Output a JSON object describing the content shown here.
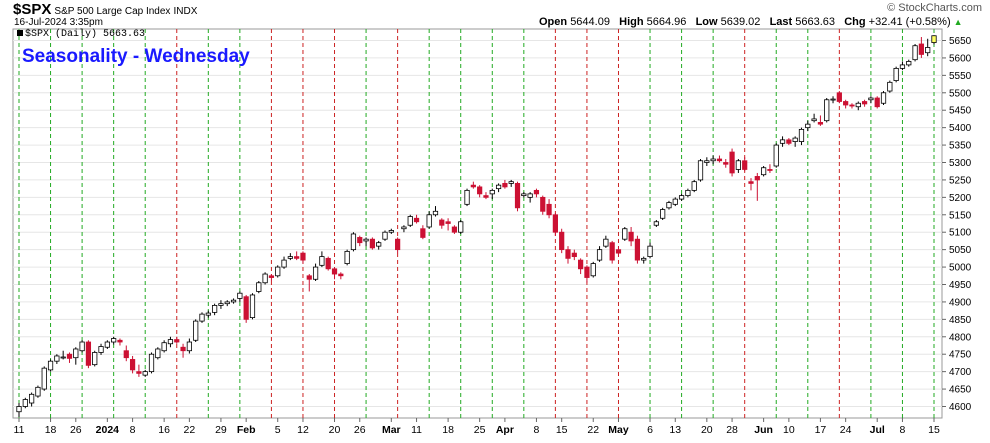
{
  "header": {
    "symbol": "$SPX",
    "name": "S&P 500 Large Cap Index",
    "exchange": "INDX",
    "timestamp": "16-Jul-2024 3:35pm",
    "legend_text": "$SPX (Daily) 5663.63",
    "open_label": "Open",
    "open_value": "5644.09",
    "high_label": "High",
    "high_value": "5664.96",
    "low_label": "Low",
    "low_value": "5639.02",
    "last_label": "Last",
    "last_value": "5663.63",
    "chg_label": "Chg",
    "chg_value": "+32.41 (+0.58%)",
    "brand": "© StockCharts.com"
  },
  "chart_data": {
    "type": "candlestick",
    "title": "Seasonality - Wednesday",
    "ylim": [
      4560,
      5700
    ],
    "y_ticks": [
      4600,
      4650,
      4700,
      4750,
      4800,
      4850,
      4900,
      4950,
      5000,
      5050,
      5100,
      5150,
      5200,
      5250,
      5300,
      5350,
      5400,
      5450,
      5500,
      5550,
      5600,
      5650
    ],
    "x_tick_labels": [
      "11",
      "18",
      "26",
      "2024",
      "8",
      "16",
      "22",
      "29",
      "Feb",
      "5",
      "12",
      "20",
      "26",
      "Mar",
      "11",
      "18",
      "25",
      "Apr",
      "8",
      "15",
      "22",
      "May",
      "6",
      "13",
      "20",
      "28",
      "Jun",
      "10",
      "17",
      "24",
      "Jul",
      "8",
      "15"
    ],
    "bold_tick_labels": [
      "2024",
      "Feb",
      "Mar",
      "Apr",
      "May",
      "Jun",
      "Jul"
    ],
    "grid": true,
    "vertical_line_colors": {
      "red": "#cc2222",
      "green": "#22aa22"
    },
    "candle_colors": {
      "up": "#ffffff",
      "down": "#cc1133",
      "outline": "#000000",
      "last": "#ffff66"
    },
    "candles": [
      {
        "o": 4585,
        "h": 4610,
        "l": 4570,
        "c": 4600
      },
      {
        "o": 4600,
        "h": 4625,
        "l": 4595,
        "c": 4620
      },
      {
        "o": 4610,
        "h": 4640,
        "l": 4600,
        "c": 4635
      },
      {
        "o": 4630,
        "h": 4660,
        "l": 4625,
        "c": 4655
      },
      {
        "o": 4650,
        "h": 4715,
        "l": 4645,
        "c": 4710
      },
      {
        "o": 4705,
        "h": 4735,
        "l": 4700,
        "c": 4730
      },
      {
        "o": 4730,
        "h": 4750,
        "l": 4722,
        "c": 4745
      },
      {
        "o": 4740,
        "h": 4760,
        "l": 4735,
        "c": 4742
      },
      {
        "o": 4750,
        "h": 4755,
        "l": 4725,
        "c": 4738
      },
      {
        "o": 4740,
        "h": 4770,
        "l": 4720,
        "c": 4765
      },
      {
        "o": 4760,
        "h": 4790,
        "l": 4755,
        "c": 4785
      },
      {
        "o": 4785,
        "h": 4790,
        "l": 4710,
        "c": 4718
      },
      {
        "o": 4720,
        "h": 4760,
        "l": 4715,
        "c": 4755
      },
      {
        "o": 4755,
        "h": 4780,
        "l": 4748,
        "c": 4772
      },
      {
        "o": 4770,
        "h": 4790,
        "l": 4765,
        "c": 4785
      },
      {
        "o": 4785,
        "h": 4800,
        "l": 4778,
        "c": 4795
      },
      {
        "o": 4790,
        "h": 4795,
        "l": 4775,
        "c": 4785
      },
      {
        "o": 4760,
        "h": 4775,
        "l": 4730,
        "c": 4740
      },
      {
        "o": 4735,
        "h": 4745,
        "l": 4695,
        "c": 4705
      },
      {
        "o": 4700,
        "h": 4720,
        "l": 4685,
        "c": 4695
      },
      {
        "o": 4690,
        "h": 4705,
        "l": 4685,
        "c": 4700
      },
      {
        "o": 4700,
        "h": 4755,
        "l": 4695,
        "c": 4750
      },
      {
        "o": 4740,
        "h": 4770,
        "l": 4735,
        "c": 4765
      },
      {
        "o": 4760,
        "h": 4790,
        "l": 4755,
        "c": 4783
      },
      {
        "o": 4780,
        "h": 4800,
        "l": 4770,
        "c": 4792
      },
      {
        "o": 4792,
        "h": 4800,
        "l": 4780,
        "c": 4785
      },
      {
        "o": 4770,
        "h": 4780,
        "l": 4740,
        "c": 4760
      },
      {
        "o": 4760,
        "h": 4795,
        "l": 4752,
        "c": 4785
      },
      {
        "o": 4790,
        "h": 4850,
        "l": 4785,
        "c": 4845
      },
      {
        "o": 4845,
        "h": 4870,
        "l": 4840,
        "c": 4865
      },
      {
        "o": 4862,
        "h": 4875,
        "l": 4855,
        "c": 4868
      },
      {
        "o": 4870,
        "h": 4895,
        "l": 4862,
        "c": 4890
      },
      {
        "o": 4890,
        "h": 4905,
        "l": 4880,
        "c": 4895
      },
      {
        "o": 4895,
        "h": 4905,
        "l": 4888,
        "c": 4900
      },
      {
        "o": 4900,
        "h": 4910,
        "l": 4895,
        "c": 4905
      },
      {
        "o": 4910,
        "h": 4930,
        "l": 4900,
        "c": 4925
      },
      {
        "o": 4915,
        "h": 4920,
        "l": 4840,
        "c": 4850
      },
      {
        "o": 4855,
        "h": 4925,
        "l": 4850,
        "c": 4920
      },
      {
        "o": 4930,
        "h": 4960,
        "l": 4925,
        "c": 4955
      },
      {
        "o": 4955,
        "h": 4985,
        "l": 4950,
        "c": 4980
      },
      {
        "o": 4975,
        "h": 4980,
        "l": 4960,
        "c": 4970
      },
      {
        "o": 4975,
        "h": 5005,
        "l": 4970,
        "c": 5000
      },
      {
        "o": 5000,
        "h": 5030,
        "l": 4995,
        "c": 5020
      },
      {
        "o": 5025,
        "h": 5040,
        "l": 5020,
        "c": 5030
      },
      {
        "o": 5030,
        "h": 5045,
        "l": 5020,
        "c": 5025
      },
      {
        "o": 5040,
        "h": 5045,
        "l": 5010,
        "c": 5020
      },
      {
        "o": 4975,
        "h": 4980,
        "l": 4930,
        "c": 4965
      },
      {
        "o": 4965,
        "h": 5010,
        "l": 4960,
        "c": 5000
      },
      {
        "o": 5005,
        "h": 5045,
        "l": 5000,
        "c": 5030
      },
      {
        "o": 5025,
        "h": 5030,
        "l": 4990,
        "c": 4995
      },
      {
        "o": 4995,
        "h": 5000,
        "l": 4965,
        "c": 4980
      },
      {
        "o": 4980,
        "h": 4985,
        "l": 4965,
        "c": 4975
      },
      {
        "o": 5010,
        "h": 5050,
        "l": 5005,
        "c": 5045
      },
      {
        "o": 5050,
        "h": 5100,
        "l": 5045,
        "c": 5095
      },
      {
        "o": 5085,
        "h": 5090,
        "l": 5060,
        "c": 5070
      },
      {
        "o": 5075,
        "h": 5085,
        "l": 5060,
        "c": 5080
      },
      {
        "o": 5080,
        "h": 5085,
        "l": 5050,
        "c": 5055
      },
      {
        "o": 5060,
        "h": 5075,
        "l": 5050,
        "c": 5070
      },
      {
        "o": 5080,
        "h": 5105,
        "l": 5075,
        "c": 5100
      },
      {
        "o": 5100,
        "h": 5110,
        "l": 5095,
        "c": 5105
      },
      {
        "o": 5080,
        "h": 5085,
        "l": 5040,
        "c": 5050
      },
      {
        "o": 5110,
        "h": 5120,
        "l": 5100,
        "c": 5115
      },
      {
        "o": 5120,
        "h": 5150,
        "l": 5115,
        "c": 5145
      },
      {
        "o": 5140,
        "h": 5150,
        "l": 5125,
        "c": 5130
      },
      {
        "o": 5110,
        "h": 5120,
        "l": 5080,
        "c": 5085
      },
      {
        "o": 5115,
        "h": 5160,
        "l": 5110,
        "c": 5150
      },
      {
        "o": 5150,
        "h": 5175,
        "l": 5145,
        "c": 5160
      },
      {
        "o": 5135,
        "h": 5140,
        "l": 5110,
        "c": 5120
      },
      {
        "o": 5130,
        "h": 5140,
        "l": 5105,
        "c": 5125
      },
      {
        "o": 5115,
        "h": 5120,
        "l": 5095,
        "c": 5100
      },
      {
        "o": 5100,
        "h": 5135,
        "l": 5095,
        "c": 5130
      },
      {
        "o": 5180,
        "h": 5225,
        "l": 5175,
        "c": 5220
      },
      {
        "o": 5235,
        "h": 5245,
        "l": 5225,
        "c": 5230
      },
      {
        "o": 5230,
        "h": 5235,
        "l": 5200,
        "c": 5210
      },
      {
        "o": 5205,
        "h": 5215,
        "l": 5195,
        "c": 5200
      },
      {
        "o": 5210,
        "h": 5225,
        "l": 5195,
        "c": 5220
      },
      {
        "o": 5225,
        "h": 5240,
        "l": 5215,
        "c": 5235
      },
      {
        "o": 5240,
        "h": 5250,
        "l": 5225,
        "c": 5230
      },
      {
        "o": 5240,
        "h": 5250,
        "l": 5230,
        "c": 5245
      },
      {
        "o": 5240,
        "h": 5245,
        "l": 5160,
        "c": 5170
      },
      {
        "o": 5205,
        "h": 5215,
        "l": 5200,
        "c": 5210
      },
      {
        "o": 5200,
        "h": 5215,
        "l": 5185,
        "c": 5210
      },
      {
        "o": 5220,
        "h": 5225,
        "l": 5200,
        "c": 5210
      },
      {
        "o": 5200,
        "h": 5205,
        "l": 5150,
        "c": 5160
      },
      {
        "o": 5180,
        "h": 5195,
        "l": 5140,
        "c": 5150
      },
      {
        "o": 5150,
        "h": 5155,
        "l": 5090,
        "c": 5100
      },
      {
        "o": 5100,
        "h": 5110,
        "l": 5040,
        "c": 5050
      },
      {
        "o": 5050,
        "h": 5060,
        "l": 5010,
        "c": 5025
      },
      {
        "o": 5040,
        "h": 5050,
        "l": 5020,
        "c": 5030
      },
      {
        "o": 5020,
        "h": 5025,
        "l": 4980,
        "c": 4995
      },
      {
        "o": 5000,
        "h": 5005,
        "l": 4955,
        "c": 4970
      },
      {
        "o": 4975,
        "h": 5015,
        "l": 4970,
        "c": 5010
      },
      {
        "o": 5020,
        "h": 5060,
        "l": 5015,
        "c": 5050
      },
      {
        "o": 5060,
        "h": 5090,
        "l": 5055,
        "c": 5080
      },
      {
        "o": 5070,
        "h": 5075,
        "l": 5010,
        "c": 5020
      },
      {
        "o": 5050,
        "h": 5060,
        "l": 5030,
        "c": 5040
      },
      {
        "o": 5080,
        "h": 5115,
        "l": 5075,
        "c": 5110
      },
      {
        "o": 5100,
        "h": 5115,
        "l": 5060,
        "c": 5075
      },
      {
        "o": 5080,
        "h": 5090,
        "l": 5010,
        "c": 5020
      },
      {
        "o": 5020,
        "h": 5030,
        "l": 5010,
        "c": 5025
      },
      {
        "o": 5030,
        "h": 5070,
        "l": 5025,
        "c": 5060
      },
      {
        "o": 5120,
        "h": 5135,
        "l": 5115,
        "c": 5130
      },
      {
        "o": 5140,
        "h": 5170,
        "l": 5135,
        "c": 5165
      },
      {
        "o": 5170,
        "h": 5190,
        "l": 5165,
        "c": 5185
      },
      {
        "o": 5180,
        "h": 5200,
        "l": 5175,
        "c": 5195
      },
      {
        "o": 5195,
        "h": 5210,
        "l": 5190,
        "c": 5205
      },
      {
        "o": 5205,
        "h": 5225,
        "l": 5200,
        "c": 5220
      },
      {
        "o": 5220,
        "h": 5250,
        "l": 5215,
        "c": 5245
      },
      {
        "o": 5250,
        "h": 5310,
        "l": 5245,
        "c": 5305
      },
      {
        "o": 5300,
        "h": 5315,
        "l": 5290,
        "c": 5305
      },
      {
        "o": 5305,
        "h": 5320,
        "l": 5295,
        "c": 5310
      },
      {
        "o": 5310,
        "h": 5320,
        "l": 5300,
        "c": 5305
      },
      {
        "o": 5300,
        "h": 5310,
        "l": 5285,
        "c": 5295
      },
      {
        "o": 5330,
        "h": 5340,
        "l": 5260,
        "c": 5270
      },
      {
        "o": 5280,
        "h": 5310,
        "l": 5270,
        "c": 5305
      },
      {
        "o": 5305,
        "h": 5315,
        "l": 5275,
        "c": 5280
      },
      {
        "o": 5245,
        "h": 5255,
        "l": 5220,
        "c": 5240
      },
      {
        "o": 5260,
        "h": 5270,
        "l": 5190,
        "c": 5250
      },
      {
        "o": 5265,
        "h": 5290,
        "l": 5260,
        "c": 5285
      },
      {
        "o": 5280,
        "h": 5295,
        "l": 5270,
        "c": 5278
      },
      {
        "o": 5290,
        "h": 5355,
        "l": 5285,
        "c": 5350
      },
      {
        "o": 5355,
        "h": 5375,
        "l": 5345,
        "c": 5365
      },
      {
        "o": 5365,
        "h": 5370,
        "l": 5350,
        "c": 5355
      },
      {
        "o": 5360,
        "h": 5375,
        "l": 5345,
        "c": 5370
      },
      {
        "o": 5360,
        "h": 5400,
        "l": 5350,
        "c": 5395
      },
      {
        "o": 5400,
        "h": 5420,
        "l": 5390,
        "c": 5410
      },
      {
        "o": 5420,
        "h": 5440,
        "l": 5415,
        "c": 5425
      },
      {
        "o": 5415,
        "h": 5435,
        "l": 5405,
        "c": 5410
      },
      {
        "o": 5420,
        "h": 5485,
        "l": 5415,
        "c": 5480
      },
      {
        "o": 5480,
        "h": 5490,
        "l": 5470,
        "c": 5482
      },
      {
        "o": 5500,
        "h": 5505,
        "l": 5470,
        "c": 5475
      },
      {
        "o": 5475,
        "h": 5480,
        "l": 5455,
        "c": 5465
      },
      {
        "o": 5465,
        "h": 5470,
        "l": 5455,
        "c": 5462
      },
      {
        "o": 5460,
        "h": 5475,
        "l": 5450,
        "c": 5470
      },
      {
        "o": 5475,
        "h": 5480,
        "l": 5460,
        "c": 5468
      },
      {
        "o": 5480,
        "h": 5490,
        "l": 5470,
        "c": 5485
      },
      {
        "o": 5485,
        "h": 5490,
        "l": 5455,
        "c": 5460
      },
      {
        "o": 5470,
        "h": 5505,
        "l": 5465,
        "c": 5500
      },
      {
        "o": 5505,
        "h": 5535,
        "l": 5500,
        "c": 5530
      },
      {
        "o": 5535,
        "h": 5575,
        "l": 5530,
        "c": 5570
      },
      {
        "o": 5570,
        "h": 5590,
        "l": 5565,
        "c": 5580
      },
      {
        "o": 5580,
        "h": 5595,
        "l": 5575,
        "c": 5590
      },
      {
        "o": 5595,
        "h": 5640,
        "l": 5590,
        "c": 5635
      },
      {
        "o": 5640,
        "h": 5660,
        "l": 5600,
        "c": 5610
      },
      {
        "o": 5615,
        "h": 5655,
        "l": 5605,
        "c": 5630
      },
      {
        "o": 5644.09,
        "h": 5664.96,
        "l": 5639.02,
        "c": 5663.63
      }
    ]
  }
}
